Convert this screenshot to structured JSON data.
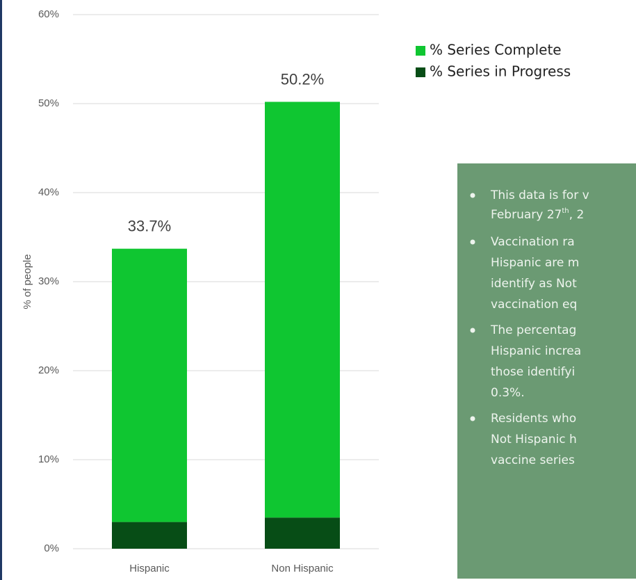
{
  "chart_data": {
    "type": "stacked_bar",
    "y_label": "% of people",
    "categories": [
      "Hispanic",
      "Non Hispanic"
    ],
    "series": [
      {
        "name": "% Series in Progress",
        "color": "#074d16",
        "values": [
          3.0,
          3.5
        ]
      },
      {
        "name": "% Series Complete",
        "color": "#0fc631",
        "values": [
          30.7,
          46.7
        ]
      }
    ],
    "totals": [
      33.7,
      50.2
    ],
    "total_labels": [
      "33.7%",
      "50.2%"
    ],
    "legend_order": [
      1,
      0
    ],
    "ylim": [
      0,
      60
    ],
    "yticks": [
      {
        "value": 0,
        "label": "0%"
      },
      {
        "value": 10,
        "label": "10%"
      },
      {
        "value": 20,
        "label": "20%"
      },
      {
        "value": 30,
        "label": "30%"
      },
      {
        "value": 40,
        "label": "40%"
      },
      {
        "value": 50,
        "label": "50%"
      },
      {
        "value": 60,
        "label": "60%"
      }
    ],
    "grid": true
  },
  "text_box": {
    "bullets": [
      {
        "lines": [
          "This data is for v"
        ],
        "date_line": {
          "text": "February 27",
          "sup": "th",
          "rest": ", 2"
        }
      },
      {
        "lines": [
          "Vaccination ra",
          "Hispanic are m",
          "identify as Not",
          "vaccination eq"
        ]
      },
      {
        "lines": [
          "The percentag",
          "Hispanic increa",
          "those identifyi",
          "0.3%."
        ]
      },
      {
        "lines": [
          "Residents who",
          "Not Hispanic h",
          "vaccine series"
        ]
      }
    ]
  }
}
